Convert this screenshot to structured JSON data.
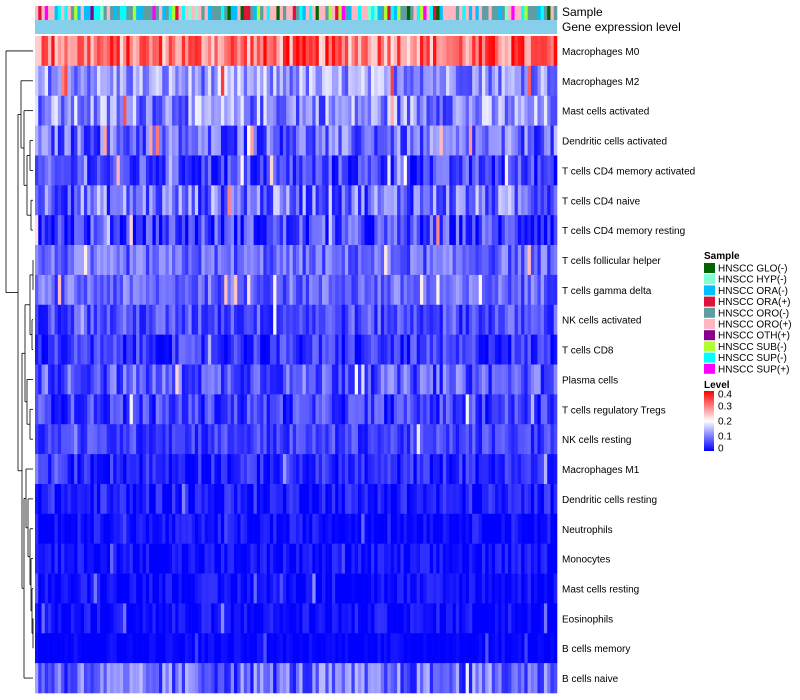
{
  "chart_data": {
    "type": "heatmap",
    "title": "",
    "annotation_tracks": [
      "Sample",
      "Gene expression level"
    ],
    "n_columns": 160,
    "rows": [
      {
        "label": "Macrophages M0",
        "mean": 0.31,
        "spread": 0.09
      },
      {
        "label": "Macrophages M2",
        "mean": 0.12,
        "spread": 0.07
      },
      {
        "label": "Mast cells activated",
        "mean": 0.11,
        "spread": 0.08
      },
      {
        "label": "Dendritic cells activated",
        "mean": 0.08,
        "spread": 0.07
      },
      {
        "label": "T cells CD4 memory activated",
        "mean": 0.05,
        "spread": 0.06
      },
      {
        "label": "T cells CD4 naive",
        "mean": 0.09,
        "spread": 0.08
      },
      {
        "label": "T cells CD4 memory resting",
        "mean": 0.05,
        "spread": 0.07
      },
      {
        "label": "T cells follicular helper",
        "mean": 0.08,
        "spread": 0.05
      },
      {
        "label": "T cells gamma delta",
        "mean": 0.08,
        "spread": 0.05
      },
      {
        "label": "NK cells activated",
        "mean": 0.06,
        "spread": 0.05
      },
      {
        "label": "T cells CD8",
        "mean": 0.04,
        "spread": 0.05
      },
      {
        "label": "Plasma cells",
        "mean": 0.07,
        "spread": 0.06
      },
      {
        "label": "T cells regulatory  Tregs",
        "mean": 0.05,
        "spread": 0.05
      },
      {
        "label": "NK cells resting",
        "mean": 0.05,
        "spread": 0.04
      },
      {
        "label": "Macrophages M1",
        "mean": 0.03,
        "spread": 0.04
      },
      {
        "label": "Dendritic cells resting",
        "mean": 0.02,
        "spread": 0.04
      },
      {
        "label": "Neutrophils",
        "mean": 0.01,
        "spread": 0.03
      },
      {
        "label": "Monocytes",
        "mean": 0.01,
        "spread": 0.03
      },
      {
        "label": "Mast cells resting",
        "mean": 0.01,
        "spread": 0.03
      },
      {
        "label": "Eosinophils",
        "mean": 0.01,
        "spread": 0.03
      },
      {
        "label": "B cells memory",
        "mean": 0.0,
        "spread": 0.02
      },
      {
        "label": "B cells naive",
        "mean": 0.08,
        "spread": 0.07
      }
    ],
    "legend_sample": {
      "title": "Sample",
      "entries": [
        {
          "label": "HNSCC GLO(-)",
          "color": "#006400"
        },
        {
          "label": "HNSCC HYP(-)",
          "color": "#7FFFD4"
        },
        {
          "label": "HNSCC ORA(-)",
          "color": "#00BFFF"
        },
        {
          "label": "HNSCC ORA(+)",
          "color": "#DC143C"
        },
        {
          "label": "HNSCC ORO(-)",
          "color": "#5F9EA0"
        },
        {
          "label": "HNSCC ORO(+)",
          "color": "#FFB6C1"
        },
        {
          "label": "HNSCC OTH(+)",
          "color": "#8B008B"
        },
        {
          "label": "HNSCC SUB(-)",
          "color": "#ADFF2F"
        },
        {
          "label": "HNSCC SUP(-)",
          "color": "#00FFFF"
        },
        {
          "label": "HNSCC SUP(+)",
          "color": "#FF00FF"
        }
      ]
    },
    "legend_level": {
      "title": "Level",
      "range": [
        0,
        0.4
      ],
      "ticks": [
        "0.4",
        "0.3",
        "0.2",
        "0.1",
        "0"
      ],
      "tick_values": [
        0.4,
        0.3,
        0.2,
        0.1,
        0
      ],
      "colors": [
        "#0000FF",
        "#FFFFFF",
        "#FF0000"
      ]
    },
    "gene_expression_color": "#87CEEB"
  }
}
